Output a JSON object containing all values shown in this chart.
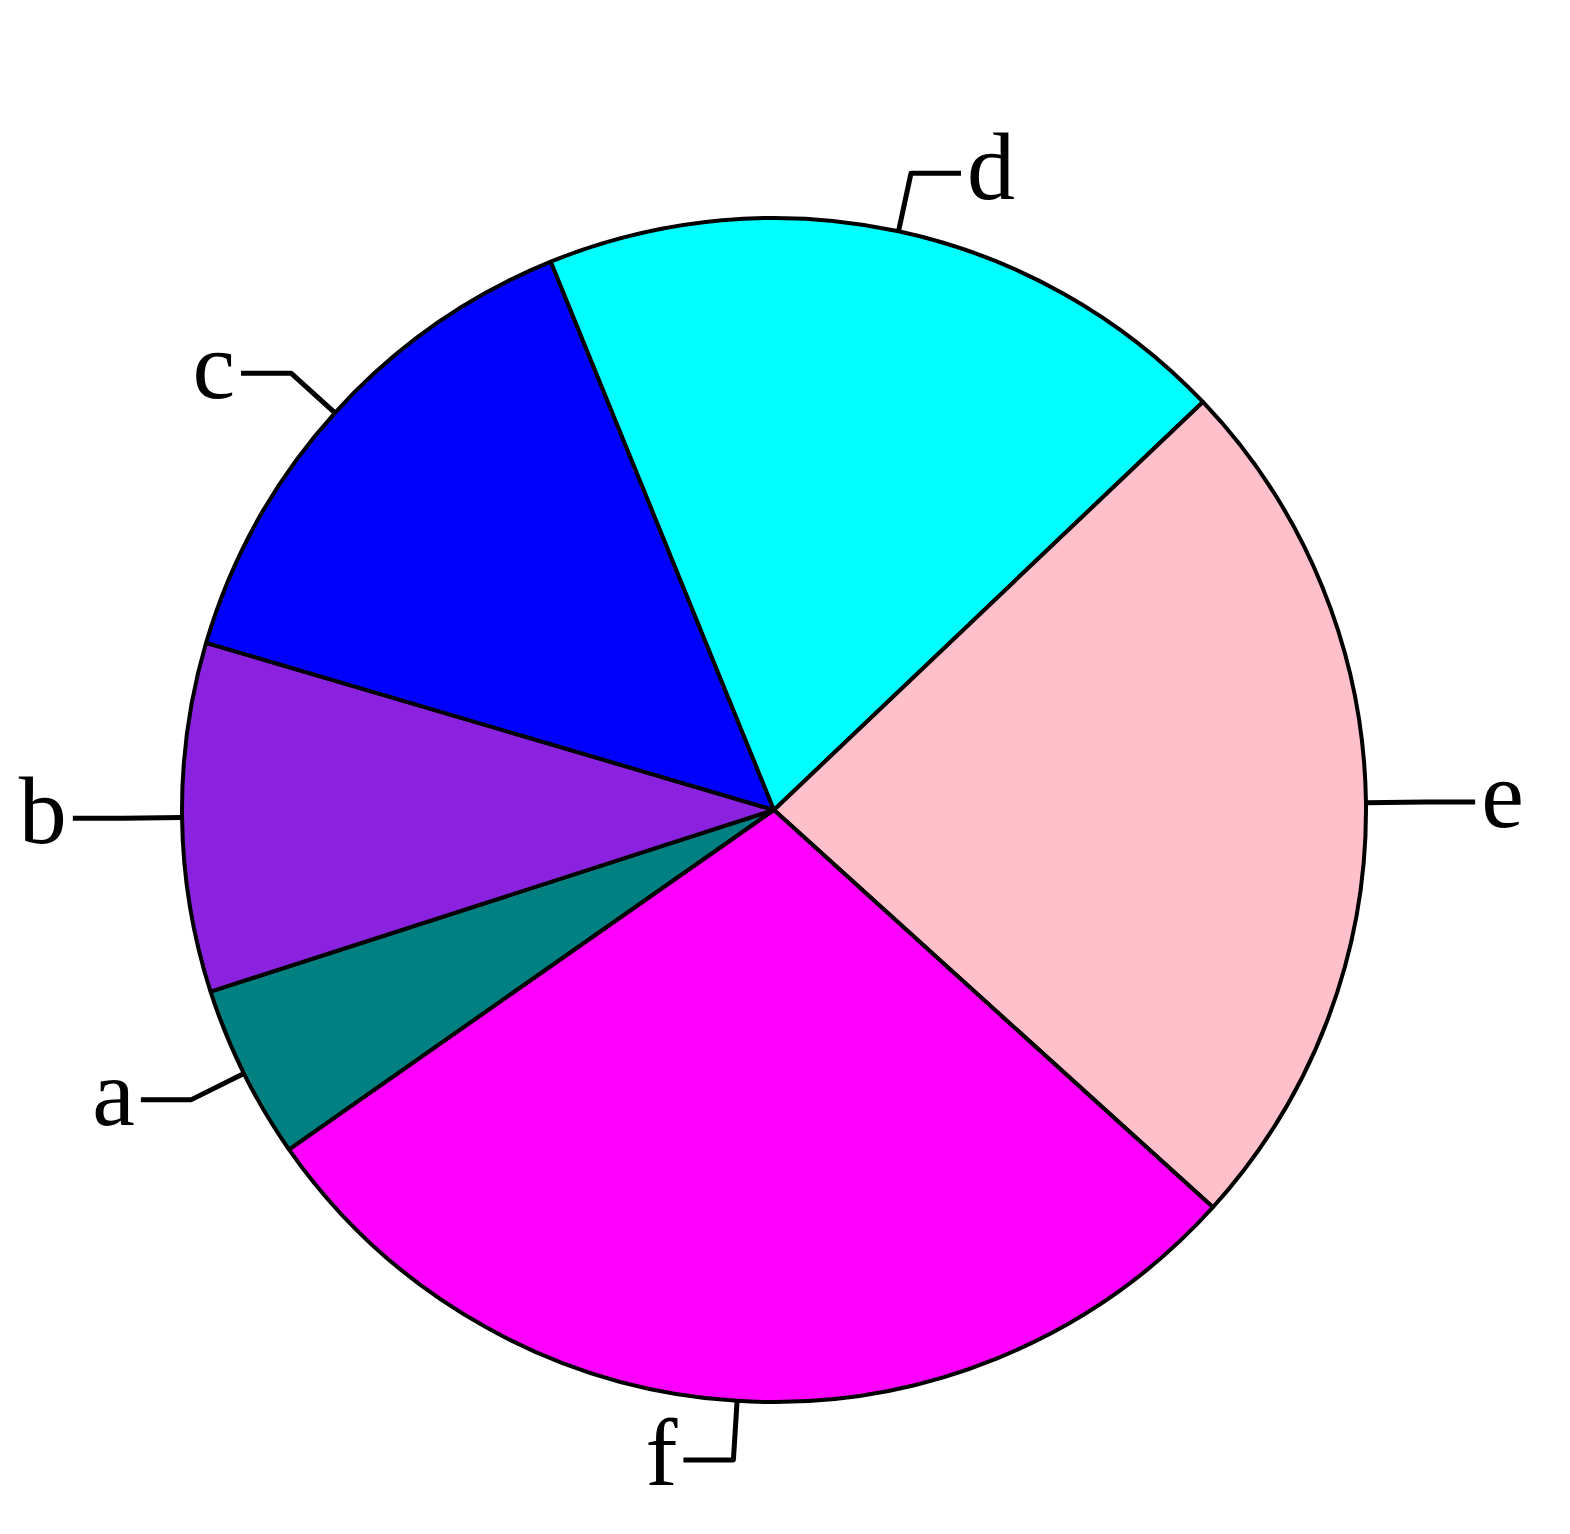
{
  "chart_data": {
    "type": "pie",
    "categories": [
      "a",
      "b",
      "c",
      "d",
      "e",
      "f"
    ],
    "values": [
      4.76,
      9.52,
      14.29,
      19.05,
      23.81,
      28.57
    ],
    "colors": [
      "#008080",
      "#8a22e0",
      "#0000ff",
      "#00ffff",
      "#ffc0cb",
      "#ff00ff"
    ]
  }
}
